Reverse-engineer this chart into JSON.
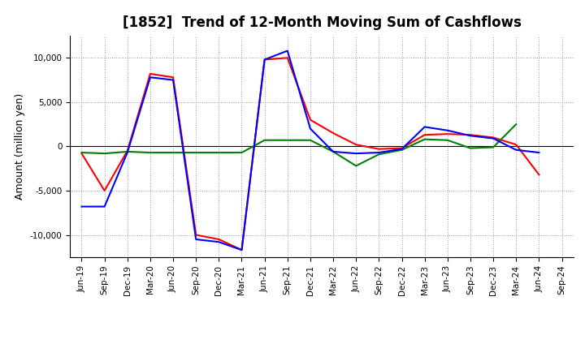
{
  "title": "[1852]  Trend of 12-Month Moving Sum of Cashflows",
  "ylabel": "Amount (million yen)",
  "x_labels": [
    "Jun-19",
    "Sep-19",
    "Dec-19",
    "Mar-20",
    "Jun-20",
    "Sep-20",
    "Dec-20",
    "Mar-21",
    "Jun-21",
    "Sep-21",
    "Dec-21",
    "Mar-22",
    "Jun-22",
    "Sep-22",
    "Dec-22",
    "Mar-23",
    "Jun-23",
    "Sep-23",
    "Dec-23",
    "Mar-24",
    "Jun-24",
    "Sep-24"
  ],
  "operating": [
    -800,
    -5000,
    -500,
    8200,
    7800,
    -10000,
    -10500,
    -11700,
    9800,
    10000,
    3000,
    1500,
    200,
    -300,
    -200,
    1300,
    1400,
    1300,
    1000,
    200,
    -3200,
    null
  ],
  "investing": [
    -700,
    -800,
    -600,
    -700,
    -700,
    -700,
    -700,
    -700,
    700,
    700,
    700,
    -600,
    -2200,
    -900,
    -400,
    800,
    700,
    -200,
    -100,
    2500,
    null,
    null
  ],
  "free": [
    -6800,
    -6800,
    -700,
    7800,
    7500,
    -10500,
    -10800,
    -11700,
    9800,
    10800,
    2000,
    -600,
    -800,
    -700,
    -300,
    2200,
    1800,
    1200,
    900,
    -400,
    -700,
    null
  ],
  "ylim": [
    -12500,
    12500
  ],
  "yticks": [
    -10000,
    -5000,
    0,
    5000,
    10000
  ],
  "operating_color": "#ff0000",
  "investing_color": "#008000",
  "free_color": "#0000ff",
  "bg_color": "#ffffff",
  "plot_bg_color": "#ffffff",
  "grid_color": "#999999",
  "line_width": 1.5,
  "title_fontsize": 12,
  "ylabel_fontsize": 9,
  "tick_fontsize": 7.5,
  "legend_fontsize": 9
}
